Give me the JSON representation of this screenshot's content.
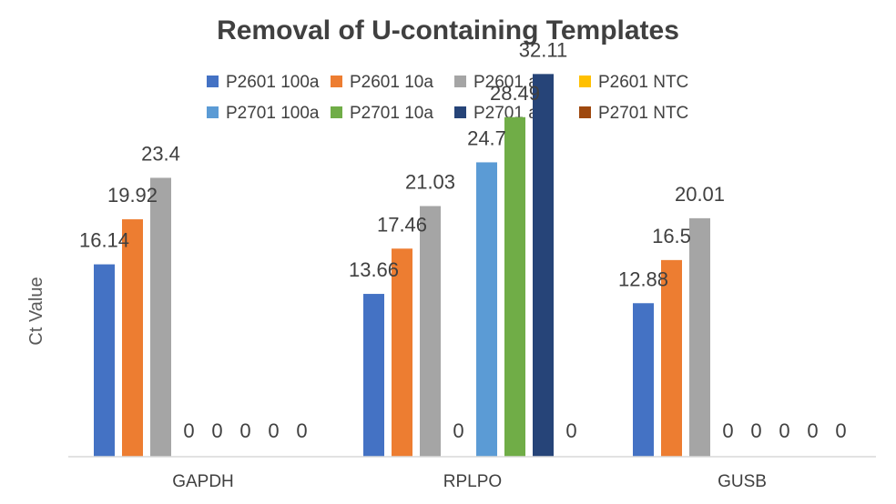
{
  "chart_data": {
    "type": "bar",
    "title": "Removal of U-containing Templates",
    "ylabel": "Ct Value",
    "xlabel": "",
    "categories": [
      "GAPDH",
      "RPLPO",
      "GUSB"
    ],
    "ylim": [
      0,
      35
    ],
    "grid": false,
    "legend_position": "top",
    "series": [
      {
        "name": "P2601 100a",
        "color": "#4472c4",
        "values": [
          16.14,
          13.66,
          12.88
        ]
      },
      {
        "name": "P2601 10a",
        "color": "#ed7d31",
        "values": [
          19.92,
          17.46,
          16.5
        ]
      },
      {
        "name": "P2601 a",
        "color": "#a5a5a5",
        "values": [
          23.4,
          21.03,
          20.01
        ]
      },
      {
        "name": "P2601 NTC",
        "color": "#ffc000",
        "values": [
          0,
          0,
          0
        ]
      },
      {
        "name": "P2701 100a",
        "color": "#5b9bd5",
        "values": [
          0,
          24.7,
          0
        ]
      },
      {
        "name": "P2701 10a",
        "color": "#70ad47",
        "values": [
          0,
          28.49,
          0
        ]
      },
      {
        "name": "P2701 a",
        "color": "#264478",
        "values": [
          0,
          32.11,
          0
        ]
      },
      {
        "name": "P2701 NTC",
        "color": "#9e480e",
        "values": [
          0,
          0,
          0
        ]
      }
    ],
    "data_labels": [
      [
        "16.14",
        "13.66",
        "12.88"
      ],
      [
        "19.92",
        "17.46",
        "16.5"
      ],
      [
        "23.4",
        "21.03",
        "20.01"
      ],
      [
        "0",
        "0",
        "0"
      ],
      [
        "0",
        "24.7",
        "0"
      ],
      [
        "0",
        "28.49",
        "0"
      ],
      [
        "0",
        "32.11",
        "0"
      ],
      [
        "0",
        "0",
        "0"
      ]
    ]
  }
}
